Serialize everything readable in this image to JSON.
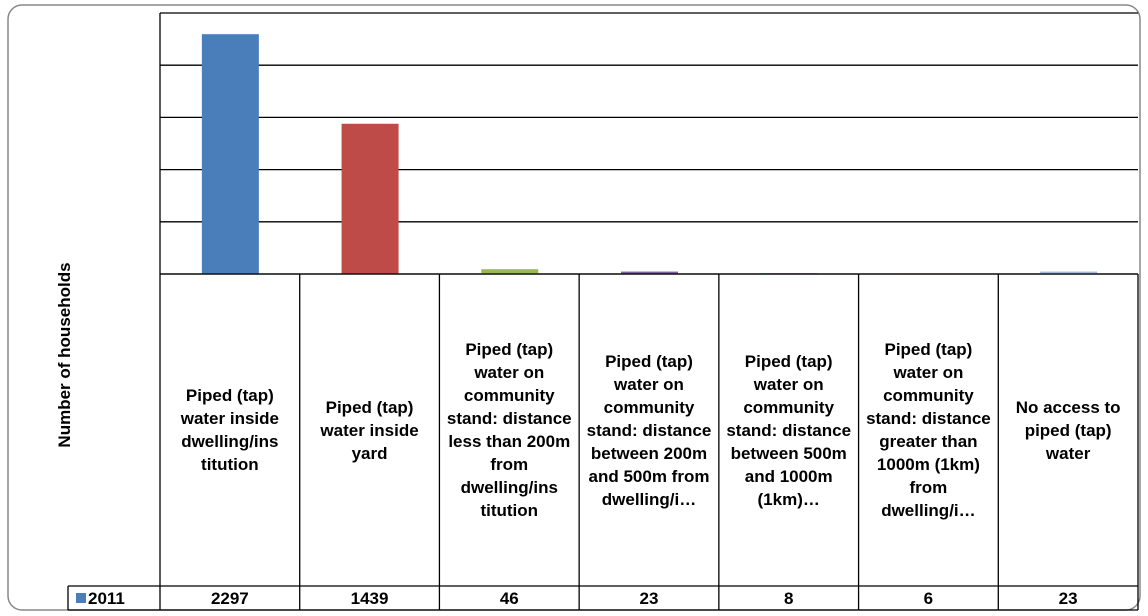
{
  "chart_data": {
    "type": "bar",
    "y_label": "Number of households",
    "categories": [
      "Piped (tap) water inside dwelling/ins titution",
      "Piped (tap) water inside yard",
      "Piped (tap) water on community stand: distance less than 200m from dwelling/ins titution",
      "Piped (tap) water on community stand: distance between 200m and 500m from dwelling/i…",
      "Piped (tap) water on community stand: distance between 500m and 1000m (1km)…",
      "Piped (tap) water on community stand: distance greater than 1000m (1km) from dwelling/i…",
      "No access to piped (tap) water"
    ],
    "series": [
      {
        "name": "2011",
        "color": "#4a7ebb",
        "point_colors": [
          "#4a7ebb",
          "#be4b48",
          "#98b954",
          "#7d60a0",
          "#46aac5",
          "#f79646",
          "#a4b7dc"
        ],
        "values": [
          2297,
          1439,
          46,
          23,
          8,
          6,
          23
        ]
      }
    ],
    "ylim": [
      0,
      2500
    ],
    "yticks": [
      0,
      500,
      1000,
      1500,
      2000,
      2500
    ],
    "grid": true,
    "data_table": true
  }
}
